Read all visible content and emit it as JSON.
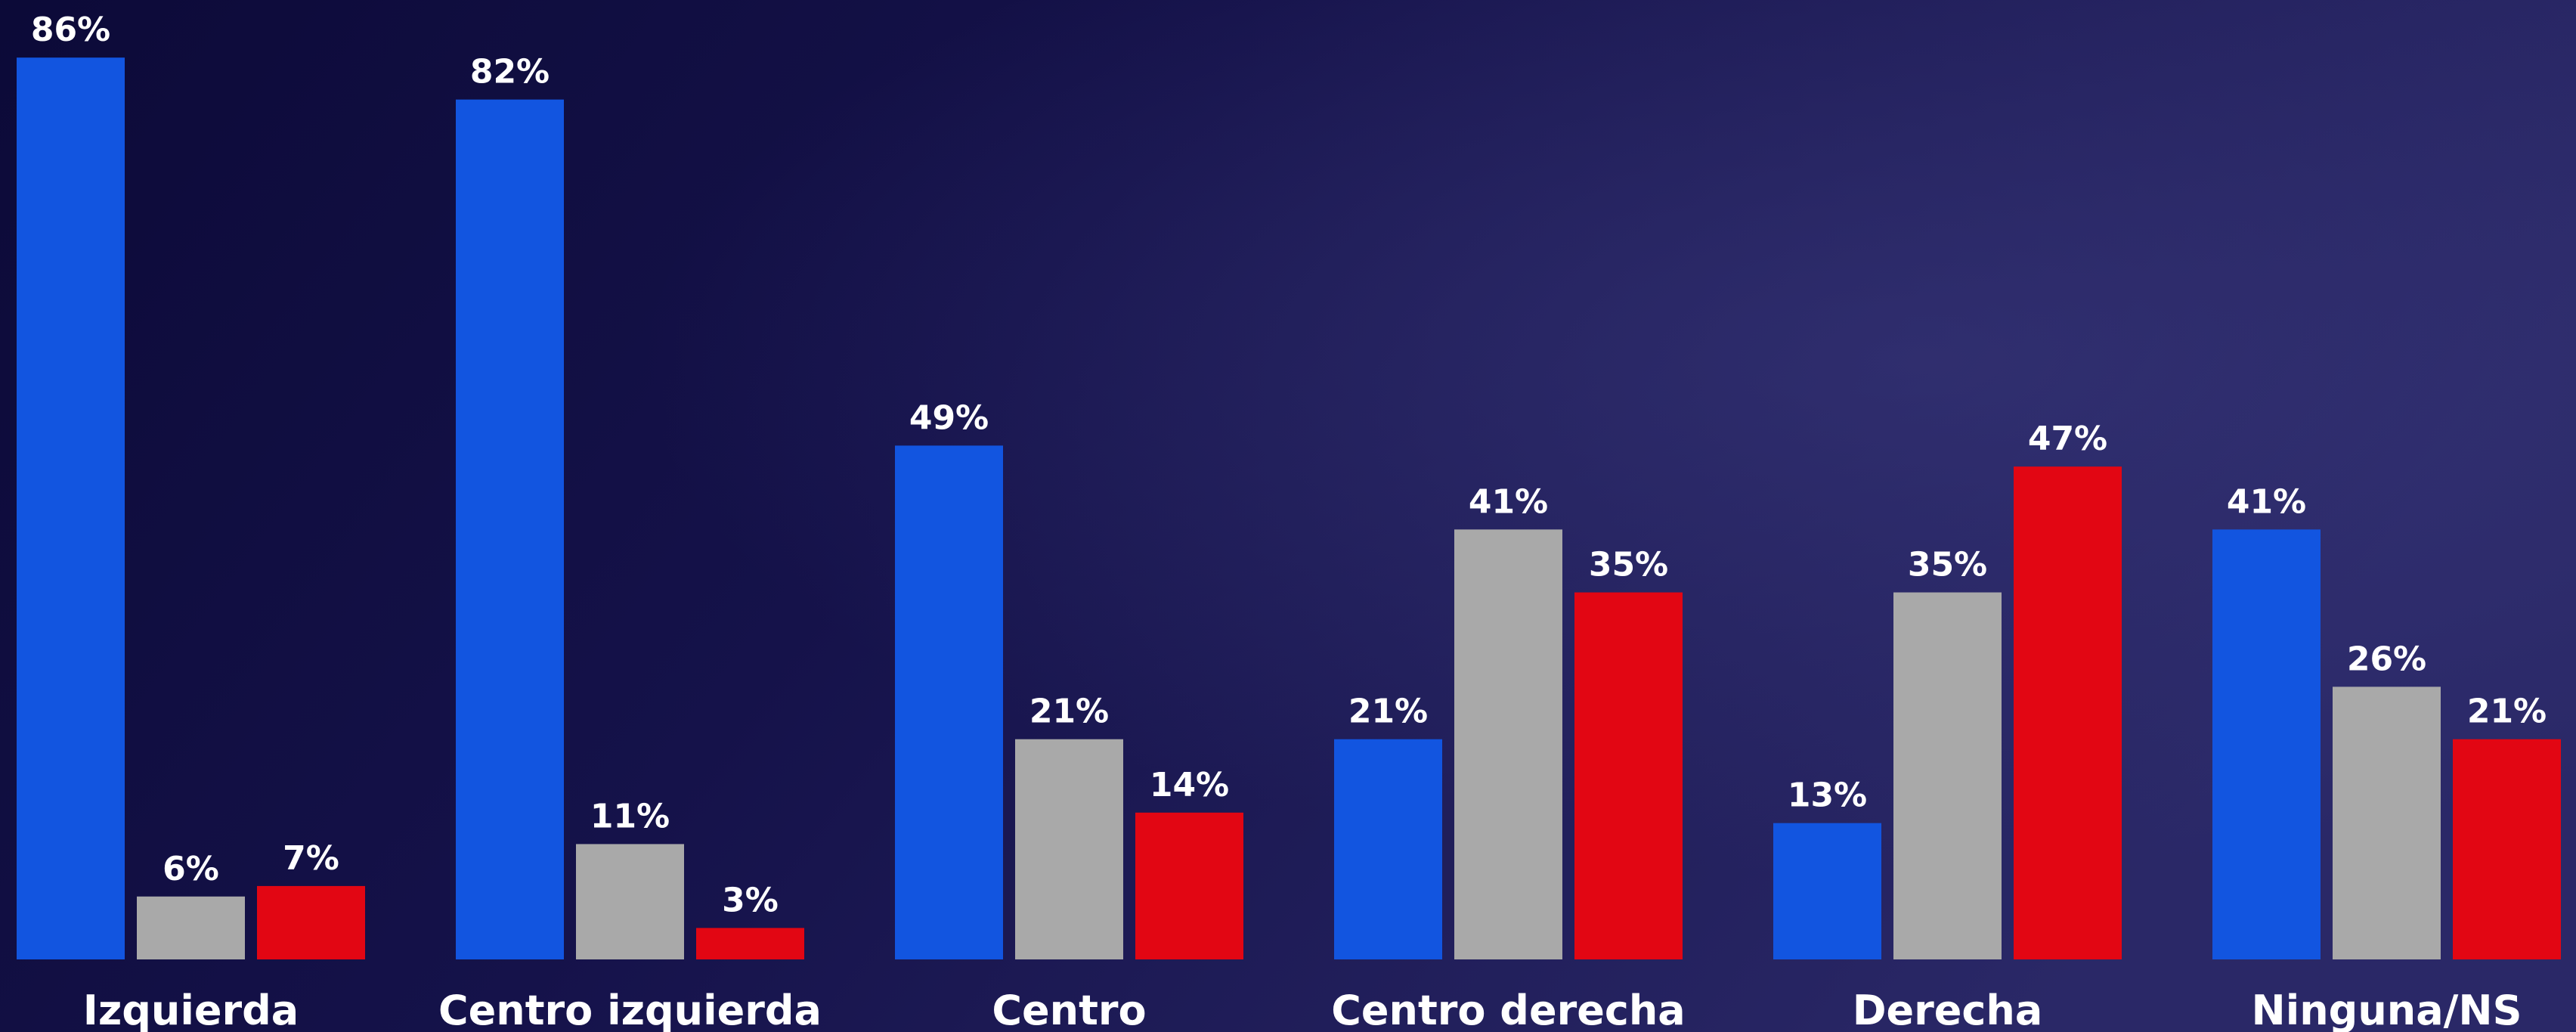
{
  "chart_data": {
    "type": "bar",
    "categories": [
      "Izquierda",
      "Centro izquierda",
      "Centro",
      "Centro derecha",
      "Derecha",
      "Ninguna/NS"
    ],
    "series": [
      {
        "color": "#1255e0",
        "values": [
          86,
          82,
          49,
          21,
          13,
          41
        ],
        "value_labels": [
          "86%",
          "82%",
          "49%",
          "21%",
          "13%",
          "41%"
        ]
      },
      {
        "color": "#a9a9a9",
        "values": [
          6,
          11,
          21,
          41,
          35,
          26
        ],
        "value_labels": [
          "6%",
          "11%",
          "21%",
          "41%",
          "35%",
          "26%"
        ]
      },
      {
        "color": "#e20613",
        "values": [
          7,
          3,
          14,
          35,
          47,
          21
        ],
        "value_labels": [
          "7%",
          "3%",
          "14%",
          "35%",
          "47%",
          "21%"
        ]
      }
    ]
  }
}
